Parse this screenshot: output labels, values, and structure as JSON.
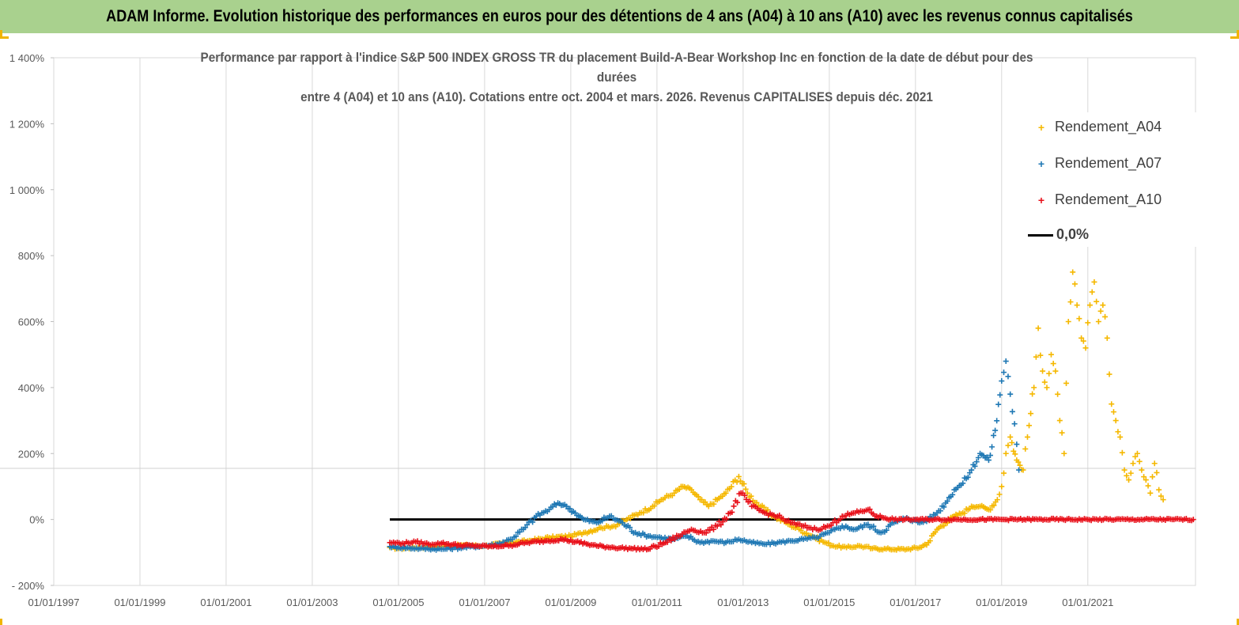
{
  "banner_title": "ADAM Informe. Evolution historique des performances en euros pour des détentions de 4 ans (A04) à 10 ans (A10) avec les revenus connus capitalisés",
  "chart_data": {
    "type": "scatter",
    "title_lines": [
      "Performance par rapport à l'indice S&P 500 INDEX GROSS TR  du placement Build-A-Bear Workshop Inc en fonction de la date de début pour des",
      "durées",
      "entre 4 (A04) et 10 ans (A10). Cotations entre oct. 2004 et mars. 2026. Revenus CAPITALISES depuis déc. 2021"
    ],
    "y_ticks": [
      "1 400%",
      "1 200%",
      "1 000%",
      "800%",
      "600%",
      "400%",
      "200%",
      "0%",
      "- 200%"
    ],
    "y_tick_values": [
      1400,
      1200,
      1000,
      800,
      600,
      400,
      200,
      0,
      -200
    ],
    "ylim": [
      -200,
      1400
    ],
    "x_ticks": [
      "01/01/1997",
      "01/01/1999",
      "01/01/2001",
      "01/01/2003",
      "01/01/2005",
      "01/01/2007",
      "01/01/2009",
      "01/01/2011",
      "01/01/2013",
      "01/01/2015",
      "01/01/2017",
      "01/01/2019",
      "01/01/2021"
    ],
    "x_tick_years": [
      1997,
      1999,
      2001,
      2003,
      2005,
      2007,
      2009,
      2011,
      2013,
      2015,
      2017,
      2019,
      2021
    ],
    "xlim": [
      1997.0,
      2023.5
    ],
    "legend_position": "top-right",
    "series": [
      {
        "name": "Rendement_A04",
        "color": "#f5b800",
        "marker": "+",
        "points": [
          [
            2004.8,
            -85
          ],
          [
            2005.0,
            -88
          ],
          [
            2005.5,
            -85
          ],
          [
            2006.0,
            -82
          ],
          [
            2006.5,
            -78
          ],
          [
            2007.0,
            -80
          ],
          [
            2007.5,
            -72
          ],
          [
            2008.0,
            -65
          ],
          [
            2008.5,
            -55
          ],
          [
            2009.0,
            -50
          ],
          [
            2009.3,
            -40
          ],
          [
            2009.7,
            -25
          ],
          [
            2010.0,
            -20
          ],
          [
            2010.3,
            0
          ],
          [
            2010.6,
            20
          ],
          [
            2010.9,
            40
          ],
          [
            2011.1,
            60
          ],
          [
            2011.4,
            80
          ],
          [
            2011.6,
            100
          ],
          [
            2011.8,
            90
          ],
          [
            2012.0,
            60
          ],
          [
            2012.2,
            40
          ],
          [
            2012.4,
            60
          ],
          [
            2012.6,
            80
          ],
          [
            2012.9,
            130
          ],
          [
            2013.1,
            80
          ],
          [
            2013.4,
            40
          ],
          [
            2013.7,
            10
          ],
          [
            2014.0,
            -10
          ],
          [
            2014.3,
            -30
          ],
          [
            2014.6,
            -50
          ],
          [
            2014.9,
            -70
          ],
          [
            2015.1,
            -80
          ],
          [
            2015.4,
            -85
          ],
          [
            2015.7,
            -80
          ],
          [
            2016.0,
            -88
          ],
          [
            2016.4,
            -90
          ],
          [
            2016.8,
            -90
          ],
          [
            2017.1,
            -85
          ],
          [
            2017.3,
            -70
          ],
          [
            2017.5,
            -30
          ],
          [
            2017.7,
            -10
          ],
          [
            2017.9,
            10
          ],
          [
            2018.1,
            20
          ],
          [
            2018.3,
            40
          ],
          [
            2018.5,
            40
          ],
          [
            2018.7,
            30
          ],
          [
            2018.9,
            60
          ],
          [
            2019.0,
            100
          ],
          [
            2019.1,
            200
          ],
          [
            2019.2,
            250
          ],
          [
            2019.35,
            180
          ],
          [
            2019.5,
            150
          ],
          [
            2019.6,
            250
          ],
          [
            2019.75,
            400
          ],
          [
            2019.85,
            580
          ],
          [
            2019.95,
            450
          ],
          [
            2020.05,
            400
          ],
          [
            2020.15,
            500
          ],
          [
            2020.25,
            450
          ],
          [
            2020.35,
            300
          ],
          [
            2020.45,
            200
          ],
          [
            2020.55,
            600
          ],
          [
            2020.65,
            750
          ],
          [
            2020.75,
            650
          ],
          [
            2020.85,
            550
          ],
          [
            2020.95,
            520
          ],
          [
            2021.05,
            650
          ],
          [
            2021.15,
            720
          ],
          [
            2021.25,
            600
          ],
          [
            2021.35,
            650
          ],
          [
            2021.45,
            550
          ],
          [
            2021.55,
            350
          ],
          [
            2021.65,
            300
          ],
          [
            2021.75,
            250
          ],
          [
            2021.85,
            150
          ],
          [
            2021.95,
            120
          ],
          [
            2022.05,
            170
          ],
          [
            2022.15,
            200
          ],
          [
            2022.25,
            150
          ],
          [
            2022.35,
            120
          ],
          [
            2022.45,
            80
          ],
          [
            2022.55,
            170
          ],
          [
            2022.65,
            90
          ],
          [
            2022.75,
            60
          ]
        ]
      },
      {
        "name": "Rendement_A07",
        "color": "#1f78b4",
        "marker": "+",
        "points": [
          [
            2004.8,
            -82
          ],
          [
            2005.0,
            -85
          ],
          [
            2005.5,
            -88
          ],
          [
            2006.0,
            -90
          ],
          [
            2006.5,
            -85
          ],
          [
            2007.0,
            -80
          ],
          [
            2007.3,
            -75
          ],
          [
            2007.6,
            -60
          ],
          [
            2007.9,
            -30
          ],
          [
            2008.2,
            10
          ],
          [
            2008.5,
            30
          ],
          [
            2008.7,
            50
          ],
          [
            2008.9,
            40
          ],
          [
            2009.1,
            20
          ],
          [
            2009.3,
            0
          ],
          [
            2009.6,
            -10
          ],
          [
            2009.9,
            10
          ],
          [
            2010.2,
            -10
          ],
          [
            2010.5,
            -40
          ],
          [
            2010.8,
            -50
          ],
          [
            2011.1,
            -55
          ],
          [
            2011.4,
            -60
          ],
          [
            2011.7,
            -50
          ],
          [
            2012.0,
            -70
          ],
          [
            2012.3,
            -65
          ],
          [
            2012.6,
            -70
          ],
          [
            2012.9,
            -60
          ],
          [
            2013.2,
            -70
          ],
          [
            2013.5,
            -75
          ],
          [
            2013.8,
            -70
          ],
          [
            2014.1,
            -65
          ],
          [
            2014.4,
            -60
          ],
          [
            2014.7,
            -55
          ],
          [
            2015.0,
            -40
          ],
          [
            2015.3,
            -20
          ],
          [
            2015.6,
            -30
          ],
          [
            2015.9,
            -15
          ],
          [
            2016.2,
            -40
          ],
          [
            2016.5,
            -10
          ],
          [
            2016.8,
            5
          ],
          [
            2017.1,
            -10
          ],
          [
            2017.3,
            0
          ],
          [
            2017.5,
            20
          ],
          [
            2017.7,
            50
          ],
          [
            2017.9,
            90
          ],
          [
            2018.1,
            110
          ],
          [
            2018.3,
            150
          ],
          [
            2018.5,
            200
          ],
          [
            2018.7,
            180
          ],
          [
            2018.85,
            270
          ],
          [
            2019.0,
            420
          ],
          [
            2019.1,
            480
          ],
          [
            2019.2,
            380
          ],
          [
            2019.3,
            290
          ],
          [
            2019.4,
            150
          ]
        ]
      },
      {
        "name": "Rendement_A10",
        "color": "#e8101a",
        "marker": "+",
        "points": [
          [
            2004.8,
            -70
          ],
          [
            2005.1,
            -72
          ],
          [
            2005.4,
            -68
          ],
          [
            2005.7,
            -75
          ],
          [
            2006.0,
            -72
          ],
          [
            2006.4,
            -78
          ],
          [
            2006.8,
            -80
          ],
          [
            2007.2,
            -82
          ],
          [
            2007.6,
            -78
          ],
          [
            2008.0,
            -70
          ],
          [
            2008.4,
            -65
          ],
          [
            2008.8,
            -60
          ],
          [
            2009.2,
            -70
          ],
          [
            2009.6,
            -80
          ],
          [
            2010.0,
            -85
          ],
          [
            2010.4,
            -88
          ],
          [
            2010.8,
            -90
          ],
          [
            2011.2,
            -70
          ],
          [
            2011.5,
            -50
          ],
          [
            2011.8,
            -30
          ],
          [
            2012.1,
            -40
          ],
          [
            2012.4,
            -20
          ],
          [
            2012.7,
            20
          ],
          [
            2012.95,
            80
          ],
          [
            2013.2,
            40
          ],
          [
            2013.5,
            20
          ],
          [
            2013.8,
            10
          ],
          [
            2014.1,
            -10
          ],
          [
            2014.4,
            -20
          ],
          [
            2014.7,
            -30
          ],
          [
            2015.0,
            -20
          ],
          [
            2015.3,
            10
          ],
          [
            2015.6,
            20
          ],
          [
            2015.9,
            30
          ],
          [
            2016.1,
            10
          ],
          [
            2016.5,
            0
          ],
          [
            2017.0,
            0
          ],
          [
            2018.0,
            0
          ],
          [
            2019.0,
            0
          ],
          [
            2020.0,
            0
          ],
          [
            2021.0,
            0
          ],
          [
            2022.0,
            0
          ],
          [
            2023.0,
            0
          ],
          [
            2023.45,
            0
          ]
        ]
      }
    ],
    "reference_line": {
      "name": "0,0%",
      "color": "#000000",
      "x_start": 2004.8,
      "x_end": 2016.2,
      "y": 0
    }
  }
}
